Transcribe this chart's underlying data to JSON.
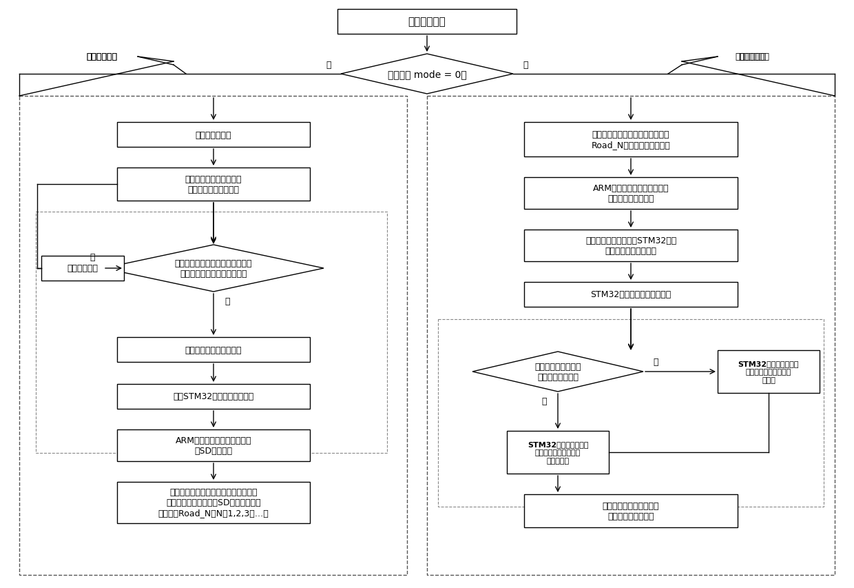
{
  "title": "平衡车初始化",
  "diamond1": "模式参数 mode = 0？",
  "label_yes": "是",
  "label_no": "否",
  "label_left_mode": "路径记忆模式",
  "label_right_mode": "路径重现模式",
  "left_box1": "平衡车开始巡逻",
  "left_box2": "按一定采样时间间隔分别\n采集左右轮里程累计值",
  "left_diamond": "根据当前数据与之前数据判断此刻\n是否为直线运动或转弯运动？",
  "left_discard": "舍弃当前数据",
  "left_box3": "按格式记录当前时刻数据",
  "left_box4": "写入STM32的预设写缓存区中",
  "left_box5": "ARM通过串口接收数据写入外\n部SD卡文件中",
  "left_box6": "当平衡车到达终点后，结束本次巡逻路\n径记忆，将本次存储在SD卡内的数据文\n件命名为Road_N（N＝1,2,3，…）",
  "right_box1": "平衡车选择路径数据库中某条路径\nRoad_N，准备按该路径巡逻",
  "right_box2": "ARM按存储顺序逆向读取外部\n存储区的文件中数据",
  "right_box3": "将数据通过串口发送至STM32，并\n将其存储至该缓存区中",
  "right_box4": "STM32读取该缓存区中的数据",
  "right_diamond": "根据数据判断某时段\n是否为直线运动？",
  "right_straight": "STM32按照直线运动的\n里程对比方式控制平衡\n车直线行走",
  "right_turn": "STM32按照转弯运动的\n里程对比方式控制平衡\n车转弯",
  "right_box5": "当平衡车到达终点后，完\n成本次巡逻路径重现",
  "bg_color": "#ffffff",
  "line_color": "#000000",
  "text_color": "#000000"
}
